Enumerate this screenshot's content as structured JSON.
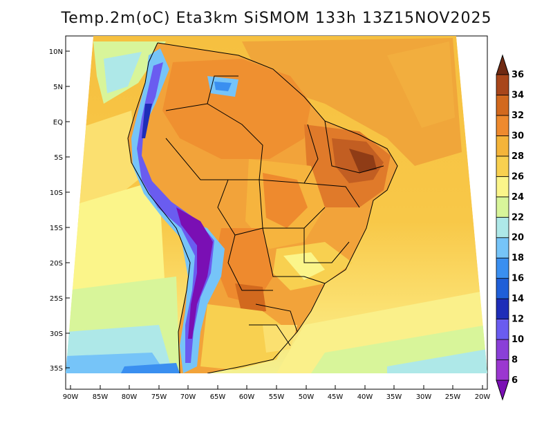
{
  "title": "Temp.2m(oC) Eta3km SiSMOM 133h 13Z15NOV2025",
  "map": {
    "type": "map",
    "variable": "2m air temperature",
    "units": "oC",
    "lat_labels": [
      "10N",
      "5N",
      "EQ",
      "5S",
      "10S",
      "15S",
      "20S",
      "25S",
      "30S",
      "35S"
    ],
    "lon_labels": [
      "90W",
      "85W",
      "80W",
      "75W",
      "70W",
      "65W",
      "60W",
      "55W",
      "50W",
      "45W",
      "40W",
      "35W",
      "30W",
      "25W",
      "20W"
    ]
  },
  "colorbar": {
    "levels": [
      "6",
      "8",
      "10",
      "12",
      "14",
      "16",
      "18",
      "20",
      "22",
      "24",
      "26",
      "28",
      "30",
      "32",
      "34",
      "36"
    ],
    "colors": [
      "#7a0fb4",
      "#9b37d0",
      "#8a3fd8",
      "#6a5cf0",
      "#1e2db8",
      "#1f5fd8",
      "#3a8ff0",
      "#76c4f8",
      "#aee8e8",
      "#d8f59a",
      "#fbf58a",
      "#f8d050",
      "#f4b43a",
      "#ee8a2e",
      "#d2691e",
      "#a8461a",
      "#6f2a12"
    ]
  }
}
